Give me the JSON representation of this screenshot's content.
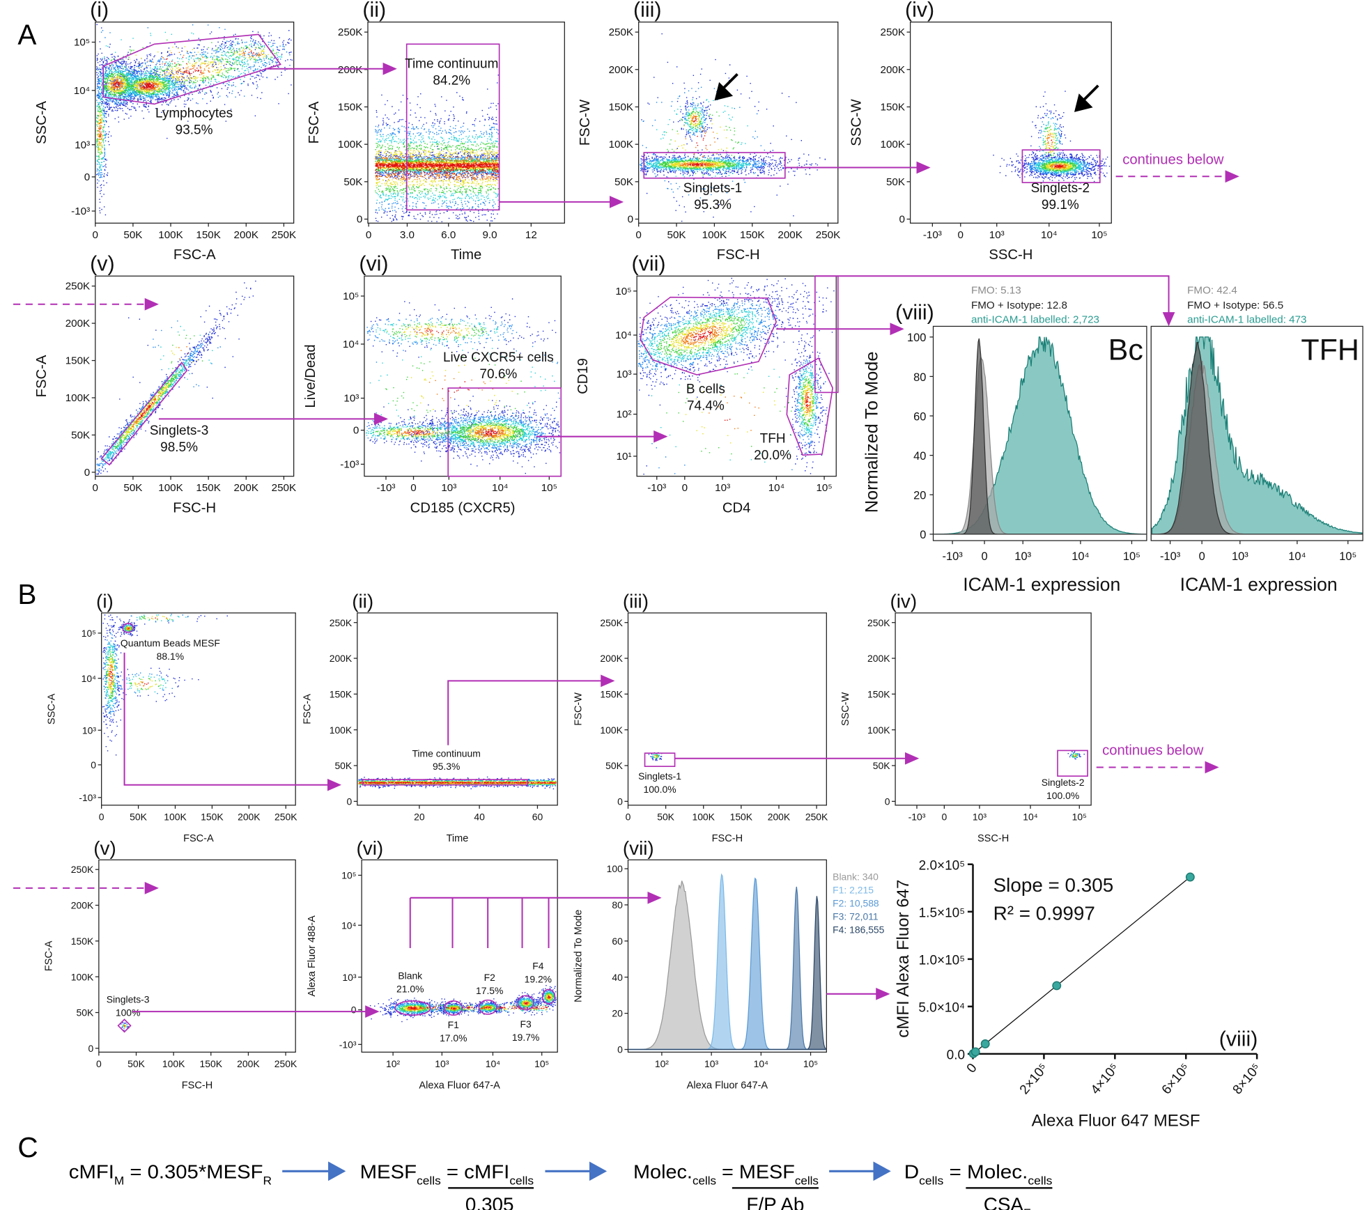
{
  "figure": {
    "letters": {
      "A": "A",
      "B": "B",
      "C": "C"
    },
    "colors": {
      "gate": "#b12fb4",
      "teal": "#45a89f",
      "arrow_blue": "#4472c4"
    }
  },
  "panels": {
    "A1": {
      "roman": "(i)",
      "xlabel": "FSC-A",
      "ylabel": "SSC-A",
      "xticks": [
        "0",
        "50K",
        "100K",
        "150K",
        "200K",
        "250K"
      ],
      "yticks": [
        "10⁵",
        "10⁴",
        "10³",
        "0",
        "-10³"
      ],
      "gates": [
        {
          "name": "Lymphocytes",
          "value": "93.5%"
        }
      ]
    },
    "A2": {
      "roman": "(ii)",
      "xlabel": "Time",
      "ylabel": "FSC-A",
      "xticks": [
        "0",
        "3.0",
        "6.0",
        "9.0",
        "12"
      ],
      "yticks": [
        "250K",
        "200K",
        "150K",
        "100K",
        "50K",
        "0"
      ],
      "gates": [
        {
          "name": "Time continuum",
          "value": "84.2%"
        }
      ]
    },
    "A3": {
      "roman": "(iii)",
      "xlabel": "FSC-H",
      "ylabel": "FSC-W",
      "xticks": [
        "0",
        "50K",
        "100K",
        "150K",
        "200K",
        "250K"
      ],
      "yticks": [
        "250K",
        "200K",
        "150K",
        "100K",
        "50K",
        "0"
      ],
      "gates": [
        {
          "name": "Singlets-1",
          "value": "95.3%"
        }
      ]
    },
    "A4": {
      "roman": "(iv)",
      "xlabel": "SSC-H",
      "ylabel": "SSC-W",
      "xticks": [
        "-10³",
        "0",
        "10³",
        "10⁴",
        "10⁵"
      ],
      "yticks": [
        "250K",
        "200K",
        "150K",
        "100K",
        "50K",
        "0"
      ],
      "gates": [
        {
          "name": "Singlets-2",
          "value": "99.1%"
        }
      ],
      "note": "continues below"
    },
    "A5": {
      "roman": "(v)",
      "xlabel": "FSC-H",
      "ylabel": "FSC-A",
      "xticks": [
        "0",
        "50K",
        "100K",
        "150K",
        "200K",
        "250K"
      ],
      "yticks": [
        "250K",
        "200K",
        "150K",
        "100K",
        "50K",
        "0"
      ],
      "gates": [
        {
          "name": "Singlets-3",
          "value": "98.5%"
        }
      ]
    },
    "A6": {
      "roman": "(vi)",
      "xlabel": "CD185 (CXCR5)",
      "ylabel": "Live/Dead",
      "xticks": [
        "-10³",
        "0",
        "10³",
        "10⁴",
        "10⁵"
      ],
      "yticks": [
        "10⁵",
        "10⁴",
        "10³",
        "0",
        "-10³"
      ],
      "gates": [
        {
          "name": "Live CXCR5+ cells",
          "value": "70.6%"
        }
      ]
    },
    "A7": {
      "roman": "(vii)",
      "xlabel": "CD4",
      "ylabel": "CD19",
      "xticks": [
        "-10³",
        "0",
        "10³",
        "10⁴",
        "10⁵"
      ],
      "yticks": [
        "10⁵",
        "10⁴",
        "10³",
        "10²",
        "10¹"
      ],
      "gates": [
        {
          "name": "B cells",
          "value": "74.4%"
        },
        {
          "name": "TFH",
          "value": "20.0%"
        }
      ]
    },
    "A8": {
      "roman": "(viii)",
      "ylabel": "Normalized To Mode",
      "yticks": [
        "100",
        "80",
        "60",
        "40",
        "20",
        "0"
      ],
      "sub": [
        {
          "title": "Bc",
          "xlabel": "ICAM-1 expression",
          "xticks": [
            "-10³",
            "0",
            "10³",
            "10⁴",
            "10⁵"
          ],
          "stats": {
            "fmo": "FMO: 5.13",
            "fmo_isotype": "FMO + Isotype: 12.8",
            "labelled": "anti-ICAM-1 labelled: 2,723"
          }
        },
        {
          "title": "TFH",
          "xlabel": "ICAM-1 expression",
          "xticks": [
            "-10³",
            "0",
            "10³",
            "10⁴",
            "10⁵"
          ],
          "stats": {
            "fmo": "FMO: 42.4",
            "fmo_isotype": "FMO + Isotype: 56.5",
            "labelled": "anti-ICAM-1 labelled: 473"
          }
        }
      ],
      "colors": {
        "fmo": "#8a8a8a",
        "fmo_isotype": "#222222",
        "labelled": "#2a9d92"
      }
    },
    "B1": {
      "roman": "(i)",
      "xlabel": "FSC-A",
      "ylabel": "SSC-A",
      "xticks": [
        "0",
        "50K",
        "100K",
        "150K",
        "200K",
        "250K"
      ],
      "yticks": [
        "10⁵",
        "10⁴",
        "10³",
        "0",
        "-10³"
      ],
      "gates": [
        {
          "name": "Quantum Beads MESF",
          "value": "88.1%"
        }
      ]
    },
    "B2": {
      "roman": "(ii)",
      "xlabel": "Time",
      "ylabel": "FSC-A",
      "xticks": [
        "20",
        "40",
        "60"
      ],
      "yticks": [
        "250K",
        "200K",
        "150K",
        "100K",
        "50K",
        "0"
      ],
      "gates": [
        {
          "name": "Time continuum",
          "value": "95.3%"
        }
      ]
    },
    "B3": {
      "roman": "(iii)",
      "xlabel": "FSC-H",
      "ylabel": "FSC-W",
      "xticks": [
        "0",
        "50K",
        "100K",
        "150K",
        "200K",
        "250K"
      ],
      "yticks": [
        "250K",
        "200K",
        "150K",
        "100K",
        "50K",
        "0"
      ],
      "gates": [
        {
          "name": "Singlets-1",
          "value": "100.0%"
        }
      ]
    },
    "B4": {
      "roman": "(iv)",
      "xlabel": "SSC-H",
      "ylabel": "SSC-W",
      "xticks": [
        "-10³",
        "0",
        "10³",
        "10⁴",
        "10⁵"
      ],
      "yticks": [
        "250K",
        "200K",
        "150K",
        "100K",
        "50K",
        "0"
      ],
      "gates": [
        {
          "name": "Singlets-2",
          "value": "100.0%"
        }
      ],
      "note": "continues below"
    },
    "B5": {
      "roman": "(v)",
      "xlabel": "FSC-H",
      "ylabel": "FSC-A",
      "xticks": [
        "0",
        "50K",
        "100K",
        "150K",
        "200K",
        "250K"
      ],
      "yticks": [
        "250K",
        "200K",
        "150K",
        "100K",
        "50K",
        "0"
      ],
      "gates": [
        {
          "name": "Singlets-3",
          "value": "100%"
        }
      ]
    },
    "B6": {
      "roman": "(vi)",
      "xlabel": "Alexa Fluor 647-A",
      "ylabel": "Alexa Fluor 488-A",
      "xticks": [
        "10²",
        "10³",
        "10⁴",
        "10⁵"
      ],
      "yticks": [
        "10⁵",
        "10⁴",
        "10³",
        "0",
        "-10³"
      ],
      "gates": [
        {
          "name": "Blank",
          "value": "21.0%"
        },
        {
          "name": "F1",
          "value": "17.0%"
        },
        {
          "name": "F2",
          "value": "17.5%"
        },
        {
          "name": "F3",
          "value": "19.7%"
        },
        {
          "name": "F4",
          "value": "19.2%"
        }
      ]
    },
    "B7": {
      "roman": "(vii)",
      "xlabel": "Alexa Fluor 647-A",
      "ylabel": "Normalized To Mode",
      "xticks": [
        "10²",
        "10³",
        "10⁴",
        "10⁵"
      ],
      "yticks": [
        "100",
        "80",
        "60",
        "40",
        "20",
        "0"
      ],
      "legend": [
        {
          "label": "Blank: 340",
          "value": 340,
          "color": "#9a9a9a"
        },
        {
          "label": "F1: 2,215",
          "value": 2215,
          "color": "#7db9e8"
        },
        {
          "label": "F2: 10,588",
          "value": 10588,
          "color": "#5b9bd5"
        },
        {
          "label": "F3: 72,011",
          "value": 72011,
          "color": "#4a78a8"
        },
        {
          "label": "F4: 186,555",
          "value": 186555,
          "color": "#2c4868"
        }
      ]
    }
  },
  "equations": [
    {
      "lhs": "cMFI",
      "lhs_sub": "M",
      "eq": " = 0.305*MESF",
      "eq_sub": "R"
    },
    {
      "lhs": "MESF",
      "lhs_sub": "cells",
      "eq": " = ",
      "num": "cMFI",
      "num_sub": "cells",
      "den": "0.305"
    },
    {
      "lhs": "Molec.",
      "lhs_sub": "cells",
      "eq": " = ",
      "num": "MESF",
      "num_sub": "cells",
      "den": "F/P Ab"
    },
    {
      "lhs": "D",
      "lhs_sub": "cells",
      "eq": " = ",
      "num": "Molec.",
      "num_sub": "cells",
      "den": "CSA",
      "den_sub": "E"
    }
  ],
  "chart_data": [
    {
      "type": "scatter",
      "roman": "(viii)",
      "xlabel": "Alexa Fluor 647 MESF",
      "ylabel": "cMFI Alexa Fluor 647",
      "x": [
        1100,
        7300,
        34700,
        236000,
        612000
      ],
      "y": [
        340,
        2215,
        10588,
        72011,
        186555
      ],
      "xlim": [
        0,
        800000
      ],
      "ylim": [
        0,
        200000
      ],
      "xticks": [
        "0",
        "2×10⁵",
        "4×10⁵",
        "6×10⁵",
        "8×10⁵"
      ],
      "yticks": [
        "0.0",
        "5.0×10⁴",
        "1.0×10⁵",
        "1.5×10⁵",
        "2.0×10⁵"
      ],
      "fit": {
        "slope": 0.305,
        "r2": 0.9997,
        "slope_label": "Slope = 0.305",
        "r2_label": "R² = 0.9997"
      },
      "marker_color": "#3aa89e",
      "grid": false
    }
  ]
}
